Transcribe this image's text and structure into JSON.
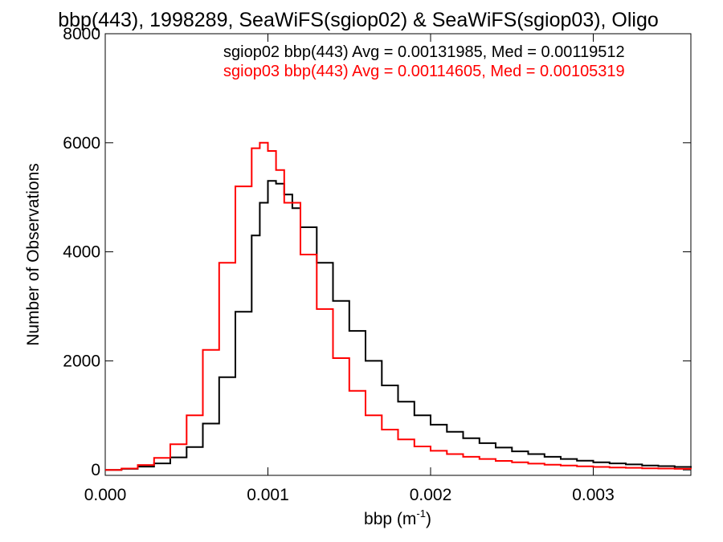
{
  "chart_data": {
    "type": "line",
    "title": "bbp(443), 1998289, SeaWiFS(sgiop02) & SeaWiFS(sgiop03), Oligo",
    "xlabel": "bbp (m",
    "xlabel_sup": "-1",
    "xlabel_close": ")",
    "ylabel": "Number of Observations",
    "xlim": [
      0.0,
      0.0036
    ],
    "ylim": [
      -100,
      8000
    ],
    "xticks": [
      {
        "value": 0.0,
        "label": "0.000"
      },
      {
        "value": 0.001,
        "label": "0.001"
      },
      {
        "value": 0.002,
        "label": "0.002"
      },
      {
        "value": 0.003,
        "label": "0.003"
      }
    ],
    "yticks": [
      {
        "value": 0,
        "label": "0"
      },
      {
        "value": 2000,
        "label": "2000"
      },
      {
        "value": 4000,
        "label": "4000"
      },
      {
        "value": 6000,
        "label": "6000"
      },
      {
        "value": 8000,
        "label": "8000"
      }
    ],
    "legend_placement": "top-right",
    "annotations": [
      {
        "text": "sgiop02 bbp(443) Avg = 0.00131985, Med = 0.00119512",
        "color": "#000000"
      },
      {
        "text": "sgiop03 bbp(443) Avg = 0.00114605, Med = 0.00105319",
        "color": "#ff0000"
      }
    ],
    "series": [
      {
        "color": "#000000",
        "x": [
          0.0,
          0.0001,
          0.0002,
          0.0003,
          0.0004,
          0.0005,
          0.0006,
          0.0007,
          0.0008,
          0.0009,
          0.00095,
          0.001,
          0.00105,
          0.0011,
          0.00115,
          0.0012,
          0.0013,
          0.0014,
          0.0015,
          0.0016,
          0.0017,
          0.0018,
          0.0019,
          0.002,
          0.0021,
          0.0022,
          0.0023,
          0.0024,
          0.0025,
          0.0026,
          0.0027,
          0.0028,
          0.0029,
          0.003,
          0.0031,
          0.0032,
          0.0033,
          0.0034,
          0.0035,
          0.0036
        ],
        "y": [
          0,
          20,
          60,
          120,
          230,
          420,
          850,
          1700,
          2900,
          4300,
          4900,
          5300,
          5250,
          5050,
          4800,
          4450,
          3800,
          3100,
          2550,
          2000,
          1550,
          1250,
          1000,
          830,
          700,
          580,
          490,
          410,
          340,
          290,
          240,
          200,
          170,
          140,
          120,
          100,
          80,
          70,
          55,
          40
        ]
      },
      {
        "color": "#ff0000",
        "x": [
          0.0,
          0.0001,
          0.0002,
          0.0003,
          0.0004,
          0.0005,
          0.0006,
          0.0007,
          0.0008,
          0.0009,
          0.00095,
          0.001,
          0.00105,
          0.0011,
          0.0012,
          0.0013,
          0.0014,
          0.0015,
          0.0016,
          0.0017,
          0.0018,
          0.0019,
          0.002,
          0.0021,
          0.0022,
          0.0023,
          0.0024,
          0.0025,
          0.0026,
          0.0027,
          0.0028,
          0.0029,
          0.003,
          0.0031,
          0.0032,
          0.0033,
          0.0034,
          0.0035,
          0.0036
        ],
        "y": [
          0,
          25,
          90,
          220,
          470,
          1000,
          2200,
          3800,
          5200,
          5900,
          6000,
          5850,
          5500,
          4900,
          3950,
          2950,
          2050,
          1450,
          1000,
          740,
          560,
          430,
          350,
          290,
          240,
          200,
          165,
          140,
          115,
          95,
          80,
          65,
          55,
          45,
          38,
          30,
          25,
          20,
          15
        ]
      }
    ]
  }
}
